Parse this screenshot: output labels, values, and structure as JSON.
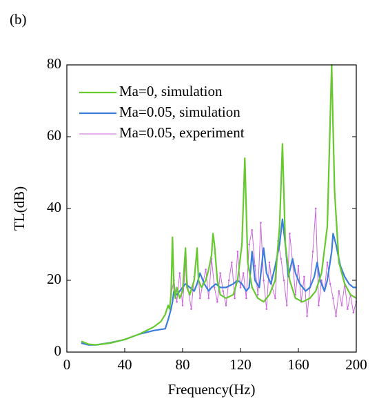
{
  "chart_data": {
    "type": "line",
    "panel_label": "(b)",
    "x_label": "Frequency(Hz)",
    "y_label": "TL(dB)",
    "xlim": [
      0,
      200
    ],
    "xticks": [
      0,
      40,
      80,
      120,
      160,
      200
    ],
    "ylim": [
      0,
      80
    ],
    "yticks": [
      0,
      20,
      40,
      60,
      80
    ],
    "legend": "upper left",
    "series": [
      {
        "name": "Ma=0, simulation",
        "color": "#66c92e",
        "marker": false,
        "x": [
          10,
          15,
          20,
          30,
          40,
          50,
          60,
          65,
          68,
          70,
          71,
          72,
          73,
          74,
          75,
          76,
          78,
          80,
          82,
          83,
          85,
          88,
          90,
          91,
          93,
          96,
          98,
          100,
          101,
          102,
          104,
          106,
          110,
          115,
          118,
          121,
          123,
          125,
          128,
          132,
          136,
          140,
          144,
          147,
          149,
          151,
          154,
          158,
          163,
          168,
          172,
          176,
          180,
          183,
          185,
          188,
          192,
          196,
          200
        ],
        "values": [
          3,
          2.2,
          2,
          2.5,
          3.5,
          5,
          7,
          8.5,
          10.5,
          13,
          12,
          16,
          32,
          18,
          15,
          18,
          15,
          17,
          29,
          18,
          16,
          20,
          29,
          20,
          18,
          20,
          23,
          27,
          33,
          30,
          20,
          16,
          15,
          16,
          20,
          30,
          54,
          25,
          18,
          15,
          14,
          16,
          20,
          35,
          58,
          30,
          20,
          15,
          14,
          15,
          17,
          22,
          35,
          80,
          45,
          25,
          19,
          16,
          15
        ]
      },
      {
        "name": "Ma=0.05, simulation",
        "color": "#3a7ddb",
        "marker": false,
        "x": [
          10,
          15,
          20,
          30,
          40,
          50,
          60,
          68,
          70,
          72,
          73,
          74,
          76,
          78,
          80,
          82,
          85,
          88,
          90,
          92,
          95,
          98,
          100,
          103,
          106,
          110,
          115,
          118,
          121,
          124,
          126,
          128,
          130,
          133,
          136,
          138,
          141,
          144,
          147,
          149,
          151,
          153,
          156,
          158,
          161,
          165,
          168,
          171,
          173,
          175,
          178,
          180,
          183,
          184,
          186,
          189,
          192,
          195,
          198,
          200
        ],
        "values": [
          2.5,
          2,
          2,
          2.6,
          3.5,
          5,
          6,
          6.5,
          9,
          12,
          14,
          17,
          16,
          17,
          18,
          19,
          18,
          17,
          19,
          22,
          19,
          17,
          18,
          19,
          18,
          18,
          19,
          20,
          19,
          17,
          18,
          28,
          20,
          18,
          29,
          22,
          19,
          24,
          30,
          37,
          30,
          21,
          26,
          22,
          19,
          17,
          18,
          21,
          25,
          20,
          17,
          20,
          28,
          33,
          30,
          24,
          21,
          19,
          18,
          18
        ]
      },
      {
        "name": "Ma=0.05, experiment",
        "color": "#cc66dd",
        "marker": true,
        "x": [
          72,
          74,
          76,
          78,
          80,
          82,
          84,
          86,
          88,
          90,
          92,
          94,
          96,
          98,
          100,
          102,
          104,
          106,
          108,
          110,
          112,
          114,
          116,
          118,
          120,
          122,
          124,
          126,
          128,
          130,
          132,
          134,
          136,
          138,
          140,
          142,
          144,
          146,
          148,
          150,
          152,
          154,
          156,
          158,
          160,
          162,
          164,
          166,
          168,
          170,
          172,
          174,
          176,
          178,
          180,
          182,
          184,
          186,
          188,
          190,
          192,
          194,
          196,
          198,
          200
        ],
        "values": [
          16,
          20,
          14,
          22,
          13,
          25,
          17,
          12,
          21,
          27,
          15,
          19,
          23,
          15,
          26,
          18,
          14,
          22,
          17,
          13,
          20,
          25,
          15,
          28,
          18,
          22,
          15,
          30,
          34,
          24,
          16,
          36,
          20,
          12,
          25,
          18,
          15,
          31,
          26,
          20,
          13,
          33,
          25,
          16,
          24,
          14,
          21,
          10,
          18,
          28,
          40,
          13,
          20,
          17,
          25,
          19,
          15,
          10,
          17,
          13,
          19,
          12,
          16,
          11,
          14
        ]
      }
    ]
  }
}
